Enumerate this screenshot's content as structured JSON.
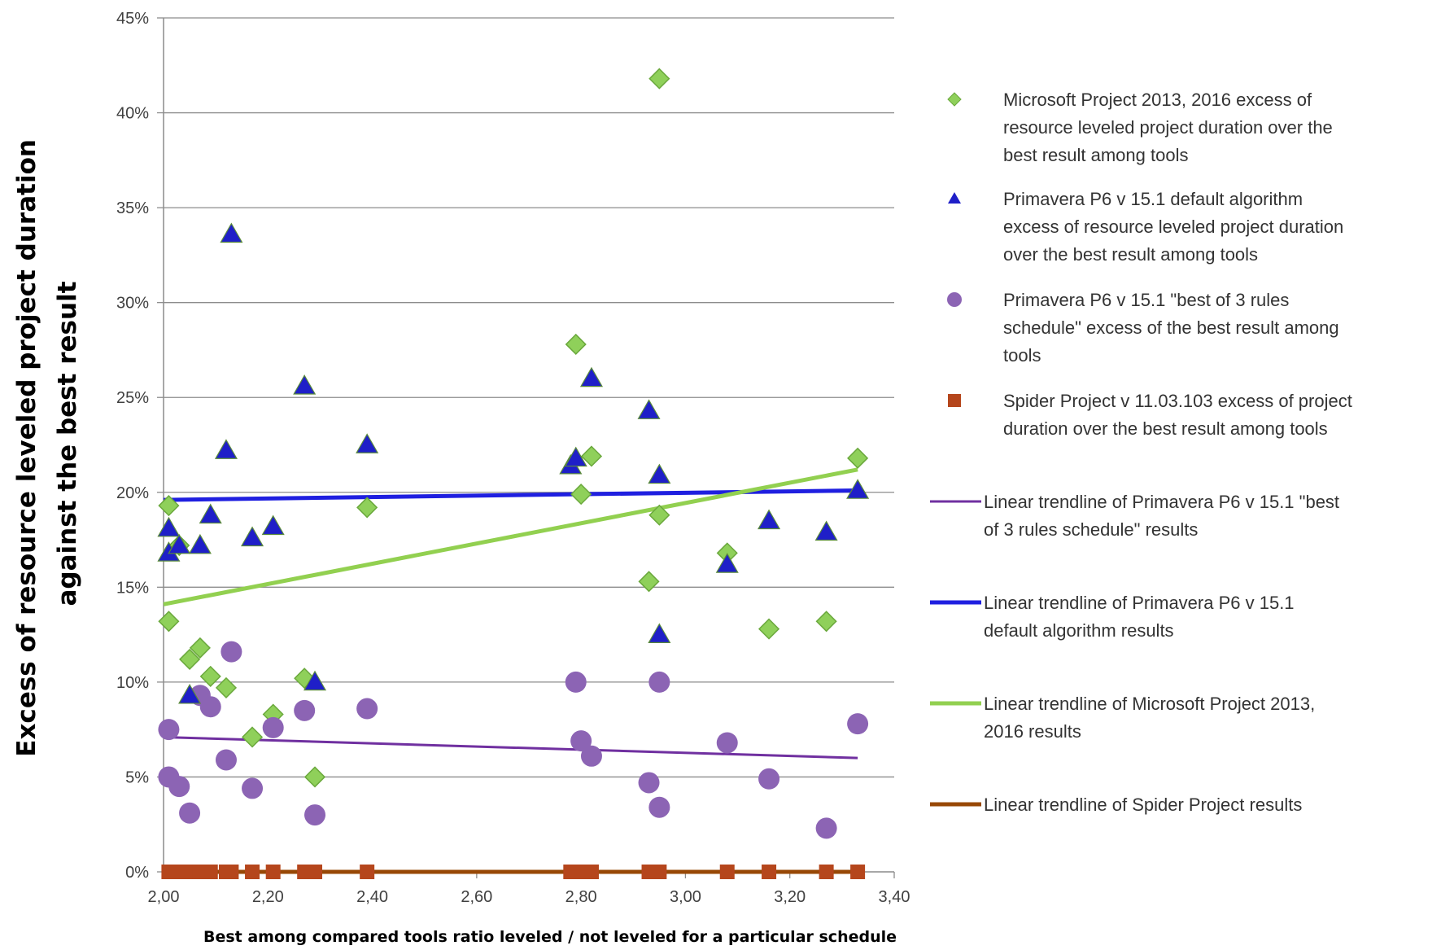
{
  "chart_data": {
    "type": "scatter",
    "xlabel": "Best among compared tools ratio leveled / not leveled for a particular schedule",
    "ylabel_lines": [
      "Excess of resource leveled project duration",
      "against the best result"
    ],
    "xlim": [
      2.0,
      3.4
    ],
    "ylim": [
      0,
      0.45
    ],
    "x_ticks": [
      2.0,
      2.2,
      2.4,
      2.6,
      2.8,
      3.0,
      3.2,
      3.4
    ],
    "x_tick_labels": [
      "2,00",
      "2,20",
      "2,40",
      "2,60",
      "2,80",
      "3,00",
      "3,20",
      "3,40"
    ],
    "y_ticks": [
      0,
      0.05,
      0.1,
      0.15,
      0.2,
      0.25,
      0.3,
      0.35,
      0.4,
      0.45
    ],
    "y_tick_labels": [
      "0%",
      "5%",
      "10%",
      "15%",
      "20%",
      "25%",
      "30%",
      "35%",
      "40%",
      "45%"
    ],
    "grid": "horizontal",
    "legend_position": "right",
    "colors": {
      "msp": "#8fd05a",
      "msp_edge": "#6aa83c",
      "p6_default": "#1f1fc8",
      "p6_best3": "#8c64b4",
      "spider": "#b5461c",
      "trend_p6_best3": "#7030a0",
      "trend_p6_default": "#1f1fe0",
      "trend_msp": "#92d050",
      "trend_spider": "#984806"
    },
    "series": [
      {
        "key": "msp",
        "name_lines": [
          "Microsoft Project 2013, 2016  excess of",
          "resource leveled project duration over the",
          "best result among  tools"
        ],
        "marker": "diamond",
        "points": [
          [
            2.01,
            0.193
          ],
          [
            2.01,
            0.132
          ],
          [
            2.03,
            0.172
          ],
          [
            2.05,
            0.112
          ],
          [
            2.07,
            0.118
          ],
          [
            2.09,
            0.103
          ],
          [
            2.12,
            0.097
          ],
          [
            2.17,
            0.071
          ],
          [
            2.21,
            0.083
          ],
          [
            2.27,
            0.102
          ],
          [
            2.29,
            0.05
          ],
          [
            2.39,
            0.192
          ],
          [
            2.79,
            0.278
          ],
          [
            2.8,
            0.199
          ],
          [
            2.82,
            0.219
          ],
          [
            2.93,
            0.153
          ],
          [
            2.95,
            0.418
          ],
          [
            2.95,
            0.188
          ],
          [
            3.08,
            0.168
          ],
          [
            3.16,
            0.128
          ],
          [
            3.27,
            0.132
          ],
          [
            3.33,
            0.218
          ]
        ]
      },
      {
        "key": "p6_default",
        "name_lines": [
          "Primavera P6 v 15.1 default algorithm",
          "excess of resource leveled project duration",
          "over the best result among tools"
        ],
        "marker": "triangle",
        "points": [
          [
            2.01,
            0.181
          ],
          [
            2.01,
            0.168
          ],
          [
            2.03,
            0.172
          ],
          [
            2.05,
            0.093
          ],
          [
            2.07,
            0.172
          ],
          [
            2.09,
            0.188
          ],
          [
            2.12,
            0.222
          ],
          [
            2.13,
            0.336
          ],
          [
            2.17,
            0.176
          ],
          [
            2.21,
            0.182
          ],
          [
            2.27,
            0.256
          ],
          [
            2.29,
            0.1
          ],
          [
            2.39,
            0.225
          ],
          [
            2.78,
            0.214
          ],
          [
            2.79,
            0.218
          ],
          [
            2.82,
            0.26
          ],
          [
            2.93,
            0.243
          ],
          [
            2.95,
            0.209
          ],
          [
            2.95,
            0.125
          ],
          [
            3.08,
            0.162
          ],
          [
            3.16,
            0.185
          ],
          [
            3.27,
            0.179
          ],
          [
            3.33,
            0.201
          ]
        ]
      },
      {
        "key": "p6_best3",
        "name_lines": [
          "Primavera P6 v 15.1 \"best of 3 rules",
          "schedule\" excess of  the best result among",
          "tools"
        ],
        "marker": "circle",
        "points": [
          [
            2.01,
            0.075
          ],
          [
            2.01,
            0.05
          ],
          [
            2.03,
            0.045
          ],
          [
            2.05,
            0.031
          ],
          [
            2.07,
            0.093
          ],
          [
            2.09,
            0.087
          ],
          [
            2.12,
            0.059
          ],
          [
            2.13,
            0.116
          ],
          [
            2.17,
            0.044
          ],
          [
            2.21,
            0.076
          ],
          [
            2.27,
            0.085
          ],
          [
            2.29,
            0.03
          ],
          [
            2.39,
            0.086
          ],
          [
            2.79,
            0.1
          ],
          [
            2.8,
            0.069
          ],
          [
            2.82,
            0.061
          ],
          [
            2.93,
            0.047
          ],
          [
            2.95,
            0.034
          ],
          [
            2.95,
            0.1
          ],
          [
            3.08,
            0.068
          ],
          [
            3.16,
            0.049
          ],
          [
            3.27,
            0.023
          ],
          [
            3.33,
            0.078
          ]
        ]
      },
      {
        "key": "spider",
        "name_lines": [
          "Spider Project v 11.03.103 excess of project",
          "duration over the best result among  tools"
        ],
        "marker": "square",
        "points": [
          [
            2.01,
            0
          ],
          [
            2.03,
            0
          ],
          [
            2.05,
            0
          ],
          [
            2.07,
            0
          ],
          [
            2.09,
            0
          ],
          [
            2.12,
            0
          ],
          [
            2.13,
            0
          ],
          [
            2.17,
            0
          ],
          [
            2.21,
            0
          ],
          [
            2.27,
            0
          ],
          [
            2.29,
            0
          ],
          [
            2.39,
            0
          ],
          [
            2.78,
            0
          ],
          [
            2.8,
            0
          ],
          [
            2.82,
            0
          ],
          [
            2.93,
            0
          ],
          [
            2.95,
            0
          ],
          [
            3.08,
            0
          ],
          [
            3.16,
            0
          ],
          [
            3.27,
            0
          ],
          [
            3.33,
            0
          ]
        ]
      }
    ],
    "trendlines": [
      {
        "key": "trend_p6_best3",
        "name_lines": [
          "Linear trendline of Primavera P6 v 15.1 \"best",
          "of 3 rules schedule\" results"
        ],
        "from": [
          2.0,
          0.071
        ],
        "to": [
          3.33,
          0.06
        ]
      },
      {
        "key": "trend_p6_default",
        "name_lines": [
          "Linear trendline of Primavera P6 v 15.1",
          "default algorithm results"
        ],
        "from": [
          2.0,
          0.196
        ],
        "to": [
          3.33,
          0.201
        ]
      },
      {
        "key": "trend_msp",
        "name_lines": [
          "Linear trendline of Microsoft Project 2013,",
          "2016 results"
        ],
        "from": [
          2.0,
          0.141
        ],
        "to": [
          3.33,
          0.212
        ]
      },
      {
        "key": "trend_spider",
        "name_lines": [
          "Linear trendline of Spider Project results"
        ],
        "from": [
          2.0,
          0.0
        ],
        "to": [
          3.33,
          0.0
        ]
      }
    ]
  }
}
